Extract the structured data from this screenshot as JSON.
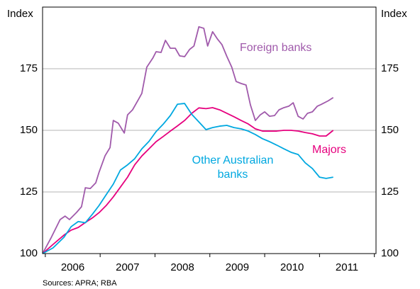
{
  "chart_data": {
    "type": "line",
    "y_label": "Index",
    "y2_label": "Index",
    "source": "Sources: APRA; RBA",
    "xlim": [
      2005.95,
      2012.03
    ],
    "xticks": [
      2006,
      2007,
      2008,
      2009,
      2010,
      2011,
      2012
    ],
    "x_labels": [
      {
        "value": 2006.5,
        "label": "2006"
      },
      {
        "value": 2007.5,
        "label": "2007"
      },
      {
        "value": 2008.5,
        "label": "2008"
      },
      {
        "value": 2009.5,
        "label": "2009"
      },
      {
        "value": 2010.5,
        "label": "2010"
      },
      {
        "value": 2011.5,
        "label": "2011"
      }
    ],
    "ylim": [
      100,
      200
    ],
    "yticks": [
      100,
      125,
      150,
      175
    ],
    "grid": true,
    "series": [
      {
        "name": "Foreign banks",
        "color": "#a05aab",
        "x": [
          2005.95,
          2006.11,
          2006.27,
          2006.36,
          2006.44,
          2006.57,
          2006.66,
          2006.73,
          2006.82,
          2006.92,
          2006.98,
          2007.09,
          2007.18,
          2007.24,
          2007.33,
          2007.44,
          2007.5,
          2007.59,
          2007.7,
          2007.76,
          2007.85,
          2007.96,
          2008.02,
          2008.11,
          2008.19,
          2008.28,
          2008.37,
          2008.45,
          2008.54,
          2008.63,
          2008.71,
          2008.8,
          2008.89,
          2008.96,
          2009.05,
          2009.14,
          2009.22,
          2009.31,
          2009.4,
          2009.48,
          2009.57,
          2009.66,
          2009.74,
          2009.83,
          2009.92,
          2010.0,
          2010.09,
          2010.18,
          2010.26,
          2010.35,
          2010.44,
          2010.52,
          2010.61,
          2010.7,
          2010.78,
          2010.87,
          2010.96,
          2011.03,
          2011.16,
          2011.25
        ],
        "values": [
          100,
          106.6,
          113.8,
          115.2,
          113.8,
          116.7,
          119,
          126.7,
          126.4,
          128.7,
          133,
          139.7,
          143,
          154,
          152.9,
          148.9,
          156.3,
          158.3,
          162.6,
          165,
          175.6,
          179.3,
          181.9,
          181.6,
          186.5,
          183.3,
          183.3,
          180.2,
          179.9,
          182.8,
          184.2,
          192,
          191.4,
          184.2,
          190,
          187,
          184.8,
          180,
          175.6,
          169.8,
          169,
          168.4,
          160.3,
          154,
          156.3,
          157.5,
          155.7,
          156,
          158.3,
          159.2,
          159.8,
          161.2,
          155.7,
          154.6,
          156.9,
          157.5,
          159.8,
          160.5,
          162,
          163.3
        ]
      },
      {
        "name": "Majors",
        "color": "#e6007e",
        "x": [
          2005.95,
          2006.14,
          2006.34,
          2006.47,
          2006.6,
          2006.73,
          2006.86,
          2006.98,
          2007.11,
          2007.24,
          2007.37,
          2007.5,
          2007.63,
          2007.76,
          2007.89,
          2008.02,
          2008.15,
          2008.28,
          2008.41,
          2008.54,
          2008.67,
          2008.8,
          2008.93,
          2009.05,
          2009.18,
          2009.31,
          2009.44,
          2009.57,
          2009.7,
          2009.83,
          2009.96,
          2010.09,
          2010.22,
          2010.35,
          2010.48,
          2010.61,
          2010.74,
          2010.87,
          2011.0,
          2011.12,
          2011.25
        ],
        "values": [
          100,
          103.7,
          107.5,
          109.5,
          110.6,
          112.6,
          114.5,
          116.6,
          119.5,
          123,
          127,
          131,
          136,
          139.6,
          142.5,
          145.4,
          147.5,
          149.7,
          151.8,
          154,
          156.9,
          159.1,
          158.8,
          159.2,
          158.3,
          156.9,
          155.5,
          154,
          152.6,
          150.6,
          149.7,
          149.7,
          149.7,
          150,
          150,
          149.7,
          149.1,
          148.6,
          147.7,
          147.7,
          150
        ]
      },
      {
        "name": "Other Australian banks",
        "color": "#00a8e0",
        "x": [
          2005.95,
          2006.14,
          2006.34,
          2006.47,
          2006.6,
          2006.73,
          2006.86,
          2006.98,
          2007.11,
          2007.24,
          2007.37,
          2007.5,
          2007.63,
          2007.76,
          2007.89,
          2008.02,
          2008.15,
          2008.28,
          2008.41,
          2008.54,
          2008.67,
          2008.8,
          2008.93,
          2009.05,
          2009.18,
          2009.31,
          2009.44,
          2009.57,
          2009.7,
          2009.83,
          2009.96,
          2010.09,
          2010.22,
          2010.35,
          2010.48,
          2010.61,
          2010.74,
          2010.87,
          2011.0,
          2011.12,
          2011.25
        ],
        "values": [
          100,
          102.3,
          106.6,
          110.9,
          113,
          112.5,
          116,
          119.5,
          123.9,
          128.2,
          133.9,
          136,
          138.5,
          142.5,
          145.5,
          149.5,
          152.5,
          156,
          160.6,
          160.9,
          156.5,
          153.4,
          150.3,
          151.1,
          151.7,
          152,
          151.1,
          150.6,
          149.7,
          148.3,
          146.6,
          145.4,
          144,
          142.5,
          141.1,
          140.2,
          136.8,
          134.5,
          131,
          130.5,
          131
        ]
      }
    ],
    "annotations": [
      {
        "lines": [
          "Foreign banks"
        ]
      },
      {
        "lines": [
          "Majors"
        ]
      },
      {
        "lines": [
          "Other Australian",
          "banks"
        ]
      }
    ]
  }
}
